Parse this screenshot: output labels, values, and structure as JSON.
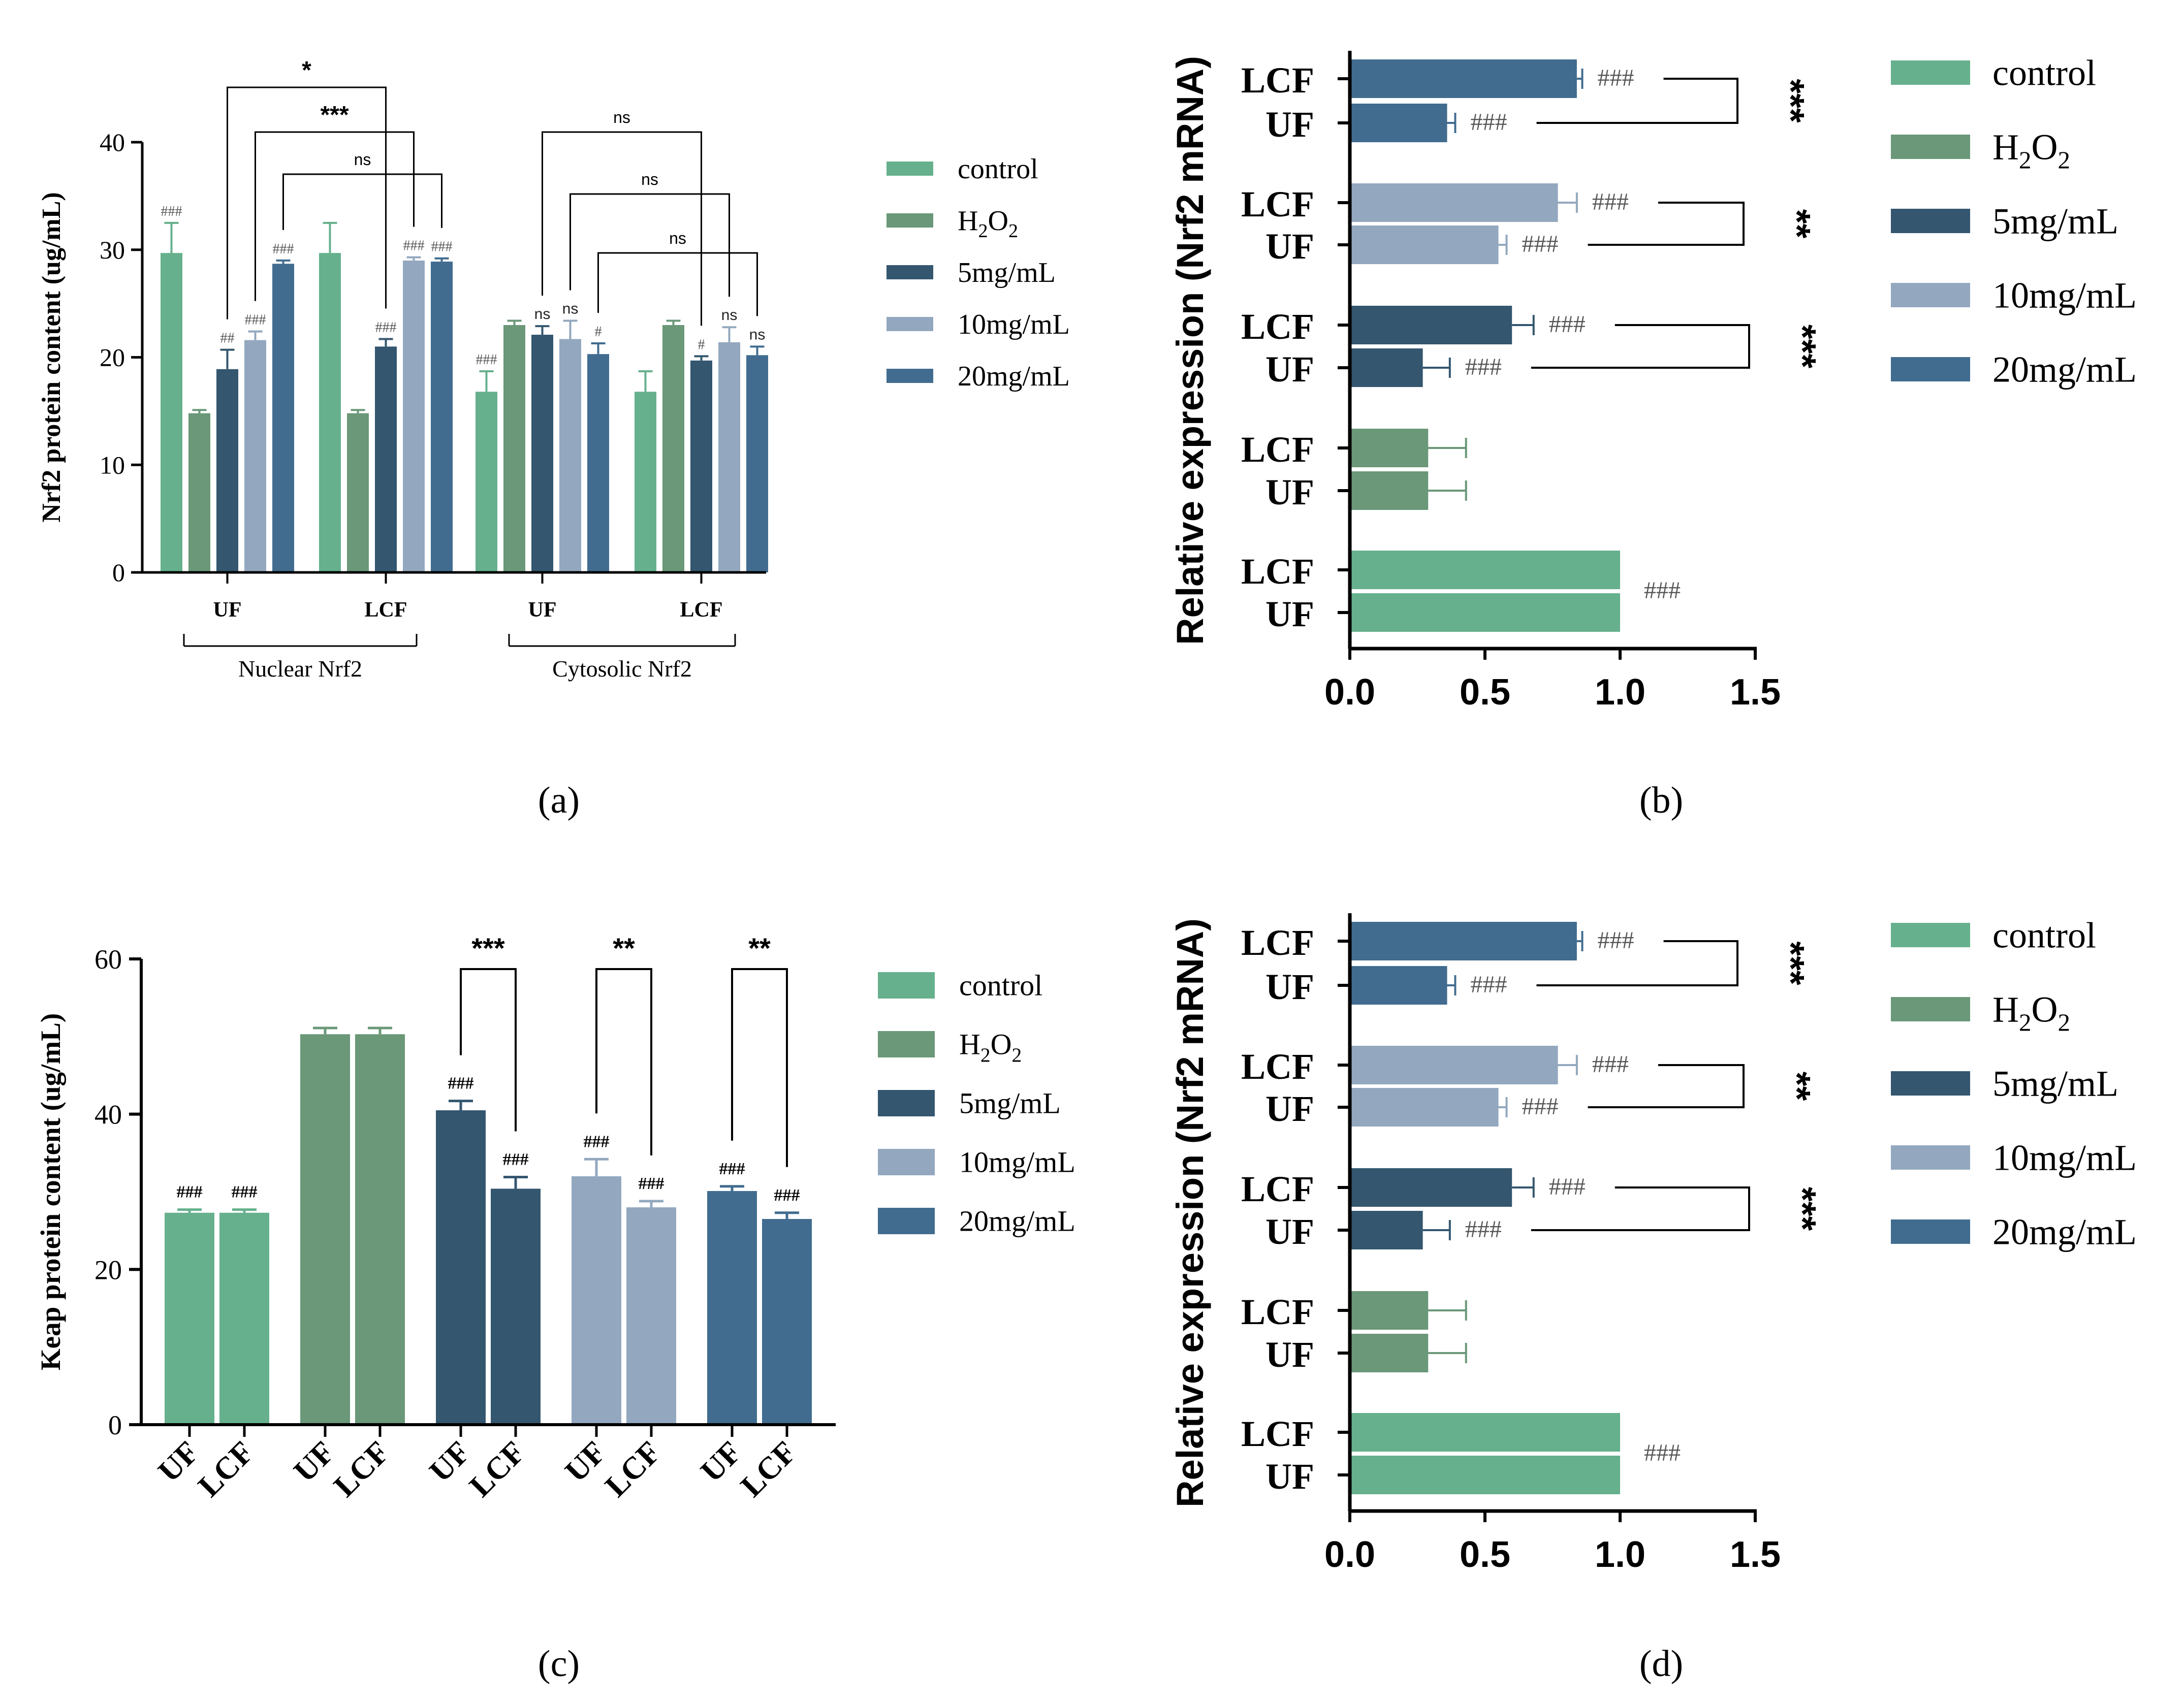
{
  "colors": {
    "control": "#66b08d",
    "H2O2": "#6a9878",
    "5mg/mL": "#34566f",
    "10mg/mL": "#93a8bf",
    "20mg/mL": "#416c8f",
    "axis": "#000000",
    "annot": "#555555"
  },
  "legend": [
    {
      "key": "control",
      "label": "control",
      "base": "control",
      "sub": ""
    },
    {
      "key": "H2O2",
      "label": "H2O2",
      "base": "",
      "sub": ""
    },
    {
      "key": "5mg/mL",
      "label": "5mg/mL",
      "base": "5mg/mL",
      "sub": ""
    },
    {
      "key": "10mg/mL",
      "label": "10mg/mL",
      "base": "10mg/mL",
      "sub": ""
    },
    {
      "key": "20mg/mL",
      "label": "20mg/mL",
      "base": "20mg/mL",
      "sub": ""
    }
  ],
  "chart_data": [
    {
      "panel": "(a)",
      "type": "bar",
      "ylabel": "Nrf2 protein content (ug/mL)",
      "ylim": [
        0,
        40
      ],
      "yticks": [
        0,
        10,
        20,
        30,
        40
      ],
      "series_names": [
        "control",
        "H2O2",
        "5mg/mL",
        "10mg/mL",
        "20mg/mL"
      ],
      "group_labels": [
        "UF",
        "LCF",
        "UF",
        "LCF"
      ],
      "super_groups": [
        "Nuclear Nrf2",
        "Cytosolic Nrf2"
      ],
      "groups": [
        {
          "values": [
            29.7,
            14.8,
            18.9,
            21.6,
            28.7
          ],
          "errors": [
            2.8,
            0.3,
            1.8,
            0.8,
            0.3
          ],
          "annots": [
            "###",
            "",
            "##",
            "###",
            "###"
          ]
        },
        {
          "values": [
            29.7,
            14.8,
            21.0,
            29.0,
            28.9
          ],
          "errors": [
            2.8,
            0.3,
            0.7,
            0.3,
            0.3
          ],
          "annots": [
            "",
            "",
            "###",
            "###",
            "###"
          ]
        },
        {
          "values": [
            16.8,
            23.0,
            22.1,
            21.7,
            20.3
          ],
          "errors": [
            1.9,
            0.4,
            0.8,
            1.7,
            1.0
          ],
          "annots": [
            "###",
            "",
            "ns",
            "ns",
            "#"
          ]
        },
        {
          "values": [
            16.8,
            23.0,
            19.7,
            21.4,
            20.2
          ],
          "errors": [
            1.9,
            0.4,
            0.4,
            1.4,
            0.8
          ],
          "annots": [
            "",
            "",
            "#",
            "ns",
            "ns"
          ]
        }
      ],
      "brackets": [
        {
          "from": [
            0,
            2
          ],
          "to": [
            1,
            2
          ],
          "label": "*"
        },
        {
          "from": [
            0,
            3
          ],
          "to": [
            1,
            3
          ],
          "label": "***"
        },
        {
          "from": [
            0,
            4
          ],
          "to": [
            1,
            4
          ],
          "label": "ns"
        },
        {
          "from": [
            2,
            2
          ],
          "to": [
            3,
            2
          ],
          "label": "ns"
        },
        {
          "from": [
            2,
            3
          ],
          "to": [
            3,
            3
          ],
          "label": "ns"
        },
        {
          "from": [
            2,
            4
          ],
          "to": [
            3,
            4
          ],
          "label": "ns"
        }
      ]
    },
    {
      "panel": "(b)",
      "type": "hbar",
      "xlabel": "Relative expression (Nrf2 mRNA)",
      "xlim": [
        0,
        1.5
      ],
      "xticks": [
        "0.0",
        "0.5",
        "1.0",
        "1.5"
      ],
      "rows": [
        {
          "label": "LCF",
          "series": "20mg/mL",
          "value": 0.84,
          "error": 0.02,
          "annot": "###"
        },
        {
          "label": "UF",
          "series": "20mg/mL",
          "value": 0.36,
          "error": 0.03,
          "annot": "###"
        },
        {
          "label": "LCF",
          "series": "10mg/mL",
          "value": 0.77,
          "error": 0.07,
          "annot": "###"
        },
        {
          "label": "UF",
          "series": "10mg/mL",
          "value": 0.55,
          "error": 0.03,
          "annot": "###"
        },
        {
          "label": "LCF",
          "series": "5mg/mL",
          "value": 0.6,
          "error": 0.08,
          "annot": "###"
        },
        {
          "label": "UF",
          "series": "5mg/mL",
          "value": 0.27,
          "error": 0.1,
          "annot": "###"
        },
        {
          "label": "LCF",
          "series": "H2O2",
          "value": 0.29,
          "error": 0.14,
          "annot": ""
        },
        {
          "label": "UF",
          "series": "H2O2",
          "value": 0.29,
          "error": 0.14,
          "annot": ""
        },
        {
          "label": "LCF",
          "series": "control",
          "value": 1.0,
          "error": 0,
          "annot": "###"
        },
        {
          "label": "UF",
          "series": "control",
          "value": 1.0,
          "error": 0,
          "annot": ""
        }
      ],
      "brackets": [
        {
          "rows": [
            0,
            1
          ],
          "label": "***"
        },
        {
          "rows": [
            2,
            3
          ],
          "label": "**"
        },
        {
          "rows": [
            4,
            5
          ],
          "label": "***"
        }
      ]
    },
    {
      "panel": "(c)",
      "type": "bar",
      "ylabel": "Keap protein content  (ug/mL)",
      "ylim": [
        0,
        60
      ],
      "yticks": [
        0,
        20,
        40,
        60
      ],
      "categories": [
        "UF",
        "LCF",
        "UF",
        "LCF",
        "UF",
        "LCF",
        "UF",
        "LCF",
        "UF",
        "LCF"
      ],
      "bars": [
        {
          "series": "control",
          "value": 27.3,
          "error": 0.4,
          "annot": "###"
        },
        {
          "series": "control",
          "value": 27.3,
          "error": 0.4,
          "annot": "###"
        },
        {
          "series": "H2O2",
          "value": 50.3,
          "error": 0.8,
          "annot": ""
        },
        {
          "series": "H2O2",
          "value": 50.3,
          "error": 0.8,
          "annot": ""
        },
        {
          "series": "5mg/mL",
          "value": 40.5,
          "error": 1.2,
          "annot": "###"
        },
        {
          "series": "5mg/mL",
          "value": 30.4,
          "error": 1.5,
          "annot": "###"
        },
        {
          "series": "10mg/mL",
          "value": 32.0,
          "error": 2.2,
          "annot": "###"
        },
        {
          "series": "10mg/mL",
          "value": 28.0,
          "error": 0.8,
          "annot": "###"
        },
        {
          "series": "20mg/mL",
          "value": 30.1,
          "error": 0.6,
          "annot": "###"
        },
        {
          "series": "20mg/mL",
          "value": 26.5,
          "error": 0.8,
          "annot": "###"
        }
      ],
      "brackets": [
        {
          "bars": [
            4,
            5
          ],
          "label": "***"
        },
        {
          "bars": [
            6,
            7
          ],
          "label": "**"
        },
        {
          "bars": [
            8,
            9
          ],
          "label": "**"
        }
      ]
    },
    {
      "panel": "(d)",
      "type": "hbar",
      "xlabel": "Relative expression (Nrf2 mRNA)",
      "xlim": [
        0,
        1.5
      ],
      "xticks": [
        "0.0",
        "0.5",
        "1.0",
        "1.5"
      ],
      "rows": [
        {
          "label": "LCF",
          "series": "20mg/mL",
          "value": 0.84,
          "error": 0.02,
          "annot": "###"
        },
        {
          "label": "UF",
          "series": "20mg/mL",
          "value": 0.36,
          "error": 0.03,
          "annot": "###"
        },
        {
          "label": "LCF",
          "series": "10mg/mL",
          "value": 0.77,
          "error": 0.07,
          "annot": "###"
        },
        {
          "label": "UF",
          "series": "10mg/mL",
          "value": 0.55,
          "error": 0.03,
          "annot": "###"
        },
        {
          "label": "LCF",
          "series": "5mg/mL",
          "value": 0.6,
          "error": 0.08,
          "annot": "###"
        },
        {
          "label": "UF",
          "series": "5mg/mL",
          "value": 0.27,
          "error": 0.1,
          "annot": "###"
        },
        {
          "label": "LCF",
          "series": "H2O2",
          "value": 0.29,
          "error": 0.14,
          "annot": ""
        },
        {
          "label": "UF",
          "series": "H2O2",
          "value": 0.29,
          "error": 0.14,
          "annot": ""
        },
        {
          "label": "LCF",
          "series": "control",
          "value": 1.0,
          "error": 0,
          "annot": "###"
        },
        {
          "label": "UF",
          "series": "control",
          "value": 1.0,
          "error": 0,
          "annot": ""
        }
      ],
      "brackets": [
        {
          "rows": [
            0,
            1
          ],
          "label": "***"
        },
        {
          "rows": [
            2,
            3
          ],
          "label": "**"
        },
        {
          "rows": [
            4,
            5
          ],
          "label": "***"
        }
      ]
    }
  ]
}
